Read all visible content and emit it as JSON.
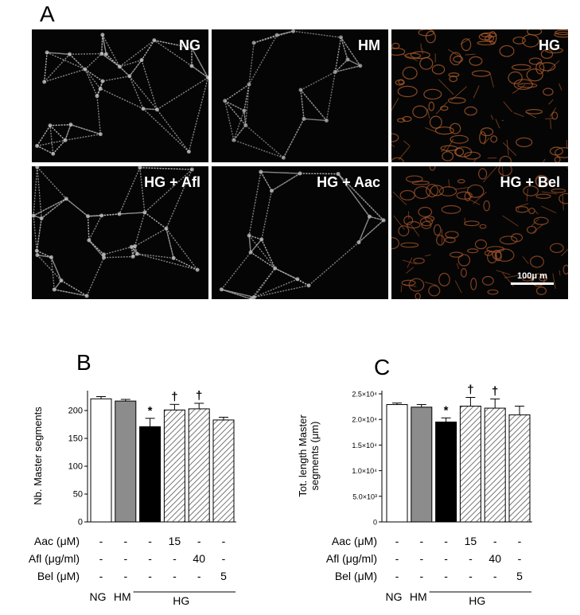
{
  "panel_labels": {
    "a": "A",
    "b": "B",
    "c": "C"
  },
  "micrographs": {
    "tiles": [
      {
        "label": "NG",
        "tint": "#bfbfbf",
        "style": "network-dense"
      },
      {
        "label": "HM",
        "tint": "#a8a8a8",
        "style": "network-sparse"
      },
      {
        "label": "HG",
        "tint": "#b5602e",
        "style": "blobs"
      },
      {
        "label": "HG + Afl",
        "tint": "#bdbdbd",
        "style": "network-dense"
      },
      {
        "label": "HG + Aac",
        "tint": "#b8b8b8",
        "style": "network-sparse"
      },
      {
        "label": "HG + Bel",
        "tint": "#a8552c",
        "style": "blobs"
      }
    ],
    "scale_bar_label": "100μ m"
  },
  "treatment_rows": [
    {
      "label": "Aac (μM)",
      "values": [
        "-",
        "-",
        "-",
        "15",
        "-",
        "-"
      ]
    },
    {
      "label": "Afl (μg/ml)",
      "values": [
        "-",
        "-",
        "-",
        "-",
        "40",
        "-"
      ]
    },
    {
      "label": "Bel (μM)",
      "values": [
        "-",
        "-",
        "-",
        "-",
        "-",
        "5"
      ]
    }
  ],
  "group_labels": [
    "NG",
    "HM"
  ],
  "hg_bracket_label": "HG",
  "chart_data": [
    {
      "type": "bar",
      "panel": "B",
      "ylabel": "Nb. Master segments",
      "ylim": [
        0,
        230
      ],
      "yticks": [
        0,
        50,
        100,
        150,
        200
      ],
      "ytick_labels": [
        "0",
        "50",
        "100",
        "150",
        "200"
      ],
      "values": [
        221,
        217,
        171,
        201,
        203,
        183
      ],
      "errors": [
        4,
        3,
        15,
        10,
        10,
        5
      ],
      "fills": [
        "white",
        "gray",
        "black",
        "hatch",
        "hatch",
        "hatch"
      ],
      "annotations": [
        "",
        "",
        "*",
        "†",
        "†",
        ""
      ]
    },
    {
      "type": "bar",
      "panel": "C",
      "ylabel": "Tot. length Master segments (μm)",
      "ylim": [
        0,
        25000
      ],
      "yticks": [
        0,
        5000,
        10000,
        15000,
        20000,
        25000
      ],
      "ytick_labels": [
        "0",
        "5.0×10³",
        "1.0×10⁴",
        "1.5×10⁴",
        "2.0×10⁴",
        "2.5×10⁴"
      ],
      "values": [
        22900,
        22400,
        19500,
        22600,
        22200,
        20900
      ],
      "errors": [
        300,
        500,
        800,
        1700,
        1800,
        1700
      ],
      "fills": [
        "white",
        "gray",
        "black",
        "hatch",
        "hatch",
        "hatch"
      ],
      "annotations": [
        "",
        "",
        "*",
        "†",
        "†",
        ""
      ]
    }
  ]
}
